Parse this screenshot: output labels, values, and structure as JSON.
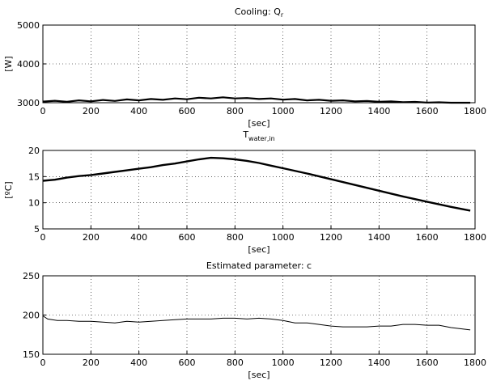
{
  "chart_data": [
    {
      "type": "line",
      "title": "Cooling: Q",
      "title_sub": "r",
      "xlabel": "[sec]",
      "ylabel": "[W]",
      "xlim": [
        0,
        1800
      ],
      "ylim": [
        3000,
        5000
      ],
      "xticks": [
        0,
        200,
        400,
        600,
        800,
        1000,
        1200,
        1400,
        1600,
        1800
      ],
      "yticks": [
        3000,
        4000,
        5000
      ],
      "xtick_labels": [
        "0",
        "200",
        "400",
        "600",
        "800",
        "1000",
        "1200",
        "1400",
        "1600",
        "1800"
      ],
      "ytick_labels": [
        "3000",
        "4000",
        "5000"
      ],
      "grid": true,
      "series": [
        {
          "x": [
            0,
            50,
            100,
            150,
            200,
            250,
            300,
            350,
            400,
            450,
            500,
            550,
            600,
            650,
            700,
            750,
            800,
            850,
            900,
            950,
            1000,
            1050,
            1100,
            1150,
            1200,
            1250,
            1300,
            1350,
            1400,
            1450,
            1500,
            1550,
            1600,
            1650,
            1700,
            1780
          ],
          "y": [
            3030,
            3050,
            3025,
            3060,
            3035,
            3070,
            3045,
            3085,
            3060,
            3095,
            3075,
            3110,
            3090,
            3130,
            3110,
            3140,
            3110,
            3120,
            3095,
            3110,
            3080,
            3095,
            3060,
            3075,
            3050,
            3060,
            3035,
            3045,
            3025,
            3035,
            3015,
            3020,
            3005,
            3010,
            3000,
            3000
          ]
        }
      ]
    },
    {
      "type": "line",
      "title": "T",
      "title_sub": "water,in",
      "xlabel": "[sec]",
      "ylabel": "[ºC]",
      "xlim": [
        0,
        1800
      ],
      "ylim": [
        5,
        20
      ],
      "xticks": [
        0,
        200,
        400,
        600,
        800,
        1000,
        1200,
        1400,
        1600,
        1800
      ],
      "yticks": [
        5,
        10,
        15,
        20
      ],
      "xtick_labels": [
        "0",
        "200",
        "400",
        "600",
        "800",
        "1000",
        "1200",
        "1400",
        "1600",
        "1800"
      ],
      "ytick_labels": [
        "5",
        "10",
        "15",
        "20"
      ],
      "grid": true,
      "series": [
        {
          "x": [
            0,
            50,
            100,
            150,
            200,
            250,
            300,
            350,
            400,
            450,
            500,
            550,
            600,
            650,
            700,
            750,
            800,
            850,
            900,
            950,
            1000,
            1100,
            1200,
            1300,
            1400,
            1500,
            1600,
            1700,
            1780
          ],
          "y": [
            14.2,
            14.4,
            14.8,
            15.1,
            15.3,
            15.6,
            15.9,
            16.2,
            16.5,
            16.8,
            17.2,
            17.5,
            17.9,
            18.3,
            18.6,
            18.5,
            18.3,
            18.0,
            17.6,
            17.1,
            16.6,
            15.6,
            14.5,
            13.4,
            12.3,
            11.2,
            10.2,
            9.2,
            8.5
          ]
        }
      ]
    },
    {
      "type": "line",
      "title": "Estimated parameter: c",
      "xlabel": "[sec]",
      "ylabel": "",
      "xlim": [
        0,
        1800
      ],
      "ylim": [
        150,
        250
      ],
      "xticks": [
        0,
        200,
        400,
        600,
        800,
        1000,
        1200,
        1400,
        1600,
        1800
      ],
      "yticks": [
        150,
        200,
        250
      ],
      "xtick_labels": [
        "0",
        "200",
        "400",
        "600",
        "800",
        "1000",
        "1200",
        "1400",
        "1600",
        "1800"
      ],
      "ytick_labels": [
        "150",
        "200",
        "250"
      ],
      "grid": true,
      "series": [
        {
          "x": [
            0,
            20,
            60,
            100,
            150,
            200,
            250,
            300,
            350,
            400,
            450,
            500,
            550,
            600,
            650,
            700,
            750,
            800,
            850,
            900,
            950,
            1000,
            1050,
            1100,
            1150,
            1200,
            1250,
            1300,
            1350,
            1400,
            1450,
            1500,
            1550,
            1600,
            1650,
            1700,
            1780
          ],
          "y": [
            199,
            195,
            193,
            193,
            192,
            192,
            191,
            190,
            192,
            191,
            192,
            193,
            194,
            195,
            195,
            195,
            196,
            196,
            195,
            196,
            195,
            193,
            190,
            190,
            188,
            186,
            185,
            185,
            185,
            186,
            186,
            188,
            188,
            187,
            187,
            184,
            181
          ]
        }
      ]
    }
  ]
}
